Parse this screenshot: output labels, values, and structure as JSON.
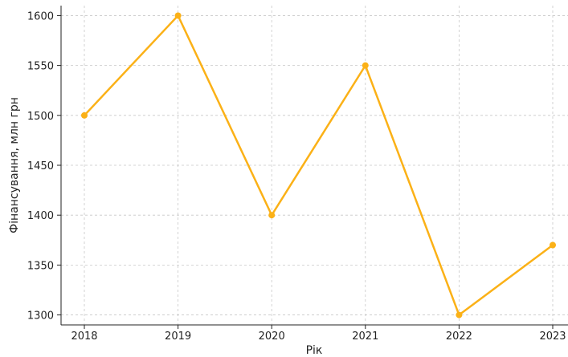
{
  "chart_data": {
    "type": "line",
    "title": "",
    "xlabel": "Рік",
    "ylabel": "Фінансування, млн грн",
    "x": [
      "2018",
      "2019",
      "2020",
      "2021",
      "2022",
      "2023"
    ],
    "series": [
      {
        "values": [
          1500,
          1600,
          1400,
          1550,
          1300,
          1370
        ],
        "color": "#FBB117"
      }
    ],
    "yticks": [
      1300,
      1350,
      1400,
      1450,
      1500,
      1550,
      1600
    ],
    "ylim": [
      1290,
      1610
    ],
    "grid": true,
    "legend": "none"
  }
}
